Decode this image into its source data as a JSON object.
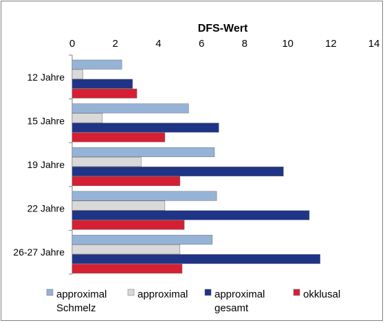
{
  "chart_data": {
    "type": "bar",
    "orientation": "horizontal",
    "title": "DFS-Wert",
    "xlim": [
      0,
      14
    ],
    "x_ticks": [
      "0",
      "2",
      "4",
      "6",
      "8",
      "10",
      "12",
      "14"
    ],
    "categories": [
      "12 Jahre",
      "15 Jahre",
      "19 Jahre",
      "22 Jahre",
      "26-27 Jahre"
    ],
    "series": [
      {
        "name": "approximal Schmelz",
        "legend_lines": [
          "approximal",
          "Schmelz"
        ],
        "color": "#95b3d7",
        "values": [
          2.3,
          5.4,
          6.6,
          6.7,
          6.5
        ]
      },
      {
        "name": "approximal",
        "legend_lines": [
          "approximal"
        ],
        "color": "#d9d9d9",
        "values": [
          0.5,
          1.4,
          3.2,
          4.3,
          5.0
        ]
      },
      {
        "name": "approximal gesamt",
        "legend_lines": [
          "approximal",
          "gesamt"
        ],
        "color": "#1f3486",
        "values": [
          2.8,
          6.8,
          9.8,
          11.0,
          11.5
        ]
      },
      {
        "name": "okklusal",
        "legend_lines": [
          "okklusal"
        ],
        "color": "#d71f33",
        "values": [
          3.0,
          4.3,
          5.0,
          5.2,
          5.1
        ]
      }
    ],
    "grid": false,
    "legend_position": "bottom"
  }
}
